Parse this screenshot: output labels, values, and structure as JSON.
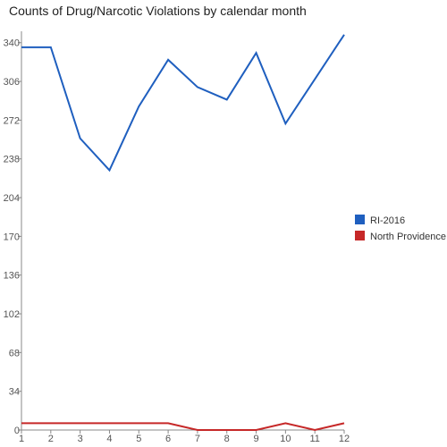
{
  "chart_data": {
    "type": "line",
    "title": "Counts of Drug/Narcotic Violations by calendar month",
    "x": [
      1,
      2,
      3,
      4,
      5,
      6,
      7,
      8,
      9,
      10,
      11,
      12
    ],
    "xticks": [
      "1",
      "2",
      "3",
      "4",
      "5",
      "6",
      "7",
      "8",
      "9",
      "10",
      "11",
      "12"
    ],
    "yticks": [
      0,
      34,
      68,
      102,
      136,
      170,
      204,
      238,
      272,
      306,
      340
    ],
    "ylim": [
      0,
      350
    ],
    "grid": false,
    "legend_position": "right",
    "series": [
      {
        "name": "RI-2016",
        "color": "#1f5fbf",
        "values": [
          336,
          336,
          256,
          228,
          284,
          325,
          301,
          290,
          331,
          269,
          308,
          347
        ]
      },
      {
        "name": "North Providence",
        "color": "#c62828",
        "values": [
          6,
          6,
          6,
          6,
          6,
          6,
          0,
          0,
          0,
          6,
          0,
          6
        ]
      }
    ]
  }
}
